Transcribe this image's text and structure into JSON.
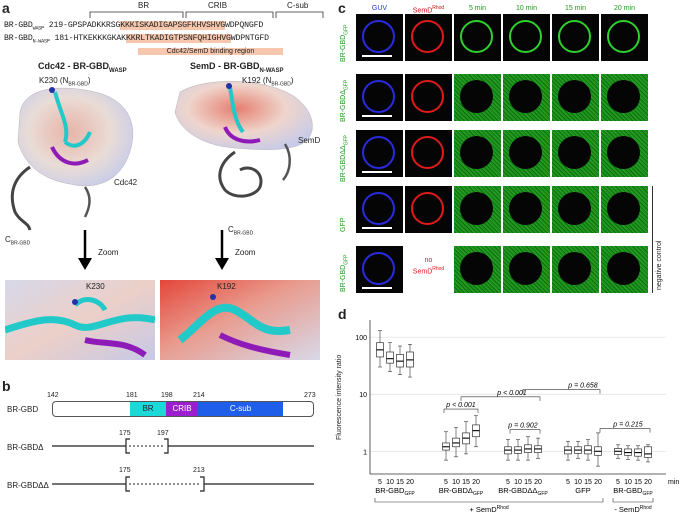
{
  "panel_a": {
    "label": "a",
    "region_headers": [
      "BR",
      "CRIB",
      "C-sub"
    ],
    "seq_wasp": {
      "name": "BR-GBD",
      "sub": "WASP",
      "pos": "219-",
      "pre": "GPSPADKKRSG",
      "hl": "KKKISKADIGAPSGFKHVSHVG",
      "post": "WDPQNGFD"
    },
    "seq_nwasp": {
      "name": "BR-GBD",
      "sub": "N-WASP",
      "pos": "181-",
      "pre": "HTKEKKKGKAK",
      "hl": "KKRLTKADIGTPSNFQHIGHVG",
      "post": "WDPNTGFD"
    },
    "binding_note": "Cdc42/SemD binding region",
    "left_title": "Cdc42 - BR-GBD",
    "left_title_sub": "WASP",
    "left_residue": "K230 (N",
    "left_residue_sub": "BR-GBD",
    "left_residue_end": ")",
    "left_partner": "Cdc42",
    "left_cterm": "C",
    "left_cterm_sub": "BR-GBD",
    "right_title": "SemD - BR-GBD",
    "right_title_sub": "N-WASP",
    "right_residue": "K192 (N",
    "right_residue_sub": "BR-GBD",
    "right_residue_end": ")",
    "right_partner": "SemD",
    "right_cterm": "C",
    "right_cterm_sub": "BR-GBD",
    "zoom_left": "Zoom",
    "zoom_right": "Zoom",
    "zoom_residue_left": "K230",
    "zoom_residue_right": "K192"
  },
  "panel_b": {
    "label": "b",
    "ticks": [
      "142",
      "181",
      "198",
      "214",
      "273"
    ],
    "construct": "BR-GBD",
    "domains": [
      "BR",
      "CRIB",
      "C-sub"
    ],
    "delta1": {
      "name": "BR-GBDΔ",
      "start": "175",
      "end": "197"
    },
    "delta2": {
      "name": "BR-GBDΔΔ",
      "start": "175",
      "end": "213"
    },
    "colors": {
      "BR": "#19d9d9",
      "CRIB": "#9b1fd0",
      "Csub": "#1f5ee8"
    }
  },
  "panel_c": {
    "label": "c",
    "col_headers": [
      "GUV",
      "SemD",
      "5 min",
      "10 min",
      "15 min",
      "20 min"
    ],
    "semd_sup": "Rhod",
    "rows": [
      "BR-GBD",
      "BR-GBDΔ",
      "BR-GBDΔΔ",
      "GFP",
      "BR-GBD"
    ],
    "row_subs": [
      "GFP",
      "GFP",
      "GFP",
      "",
      "GFP"
    ],
    "no_semd_line1": "no",
    "no_semd_line2": "SemD",
    "no_semd_sup": "Rhod",
    "negative_control": "negative control"
  },
  "panel_d": {
    "label": "d",
    "chart_data": {
      "type": "box",
      "ylabel": "Fluorescence intensity ratio",
      "yscale": "log",
      "ylim": [
        0.4,
        200
      ],
      "yticks": [
        "1",
        "10",
        "100"
      ],
      "x_tick_labels": [
        "5",
        "10",
        "15",
        "20"
      ],
      "x_unit": "min",
      "groups": [
        {
          "name": "BR-GBD",
          "sub": "GFP",
          "medians": [
            60,
            42,
            38,
            40
          ],
          "q1": [
            45,
            35,
            30,
            30
          ],
          "q3": [
            80,
            55,
            50,
            55
          ],
          "wmin": [
            30,
            25,
            22,
            20
          ],
          "wmax": [
            130,
            80,
            70,
            75
          ]
        },
        {
          "name": "BR-GBDΔ",
          "sub": "GFP",
          "medians": [
            1.2,
            1.4,
            1.7,
            2.3
          ],
          "q1": [
            1.05,
            1.2,
            1.35,
            1.8
          ],
          "q3": [
            1.4,
            1.7,
            2.1,
            2.9
          ],
          "wmin": [
            0.7,
            0.8,
            0.9,
            1.2
          ],
          "wmax": [
            2.2,
            2.6,
            3.3,
            4.2
          ]
        },
        {
          "name": "BR-GBDΔΔ",
          "sub": "GFP",
          "medians": [
            1.05,
            1.05,
            1.1,
            1.1
          ],
          "q1": [
            0.9,
            0.92,
            0.95,
            0.95
          ],
          "q3": [
            1.2,
            1.2,
            1.3,
            1.25
          ],
          "wmin": [
            0.7,
            0.7,
            0.7,
            0.75
          ],
          "wmax": [
            1.6,
            1.6,
            1.8,
            1.7
          ]
        },
        {
          "name": "GFP",
          "sub": "",
          "medians": [
            1.05,
            1.05,
            1.05,
            1.0
          ],
          "q1": [
            0.9,
            0.92,
            0.9,
            0.85
          ],
          "q3": [
            1.2,
            1.2,
            1.25,
            1.2
          ],
          "wmin": [
            0.7,
            0.75,
            0.7,
            0.55
          ],
          "wmax": [
            1.5,
            1.5,
            1.6,
            2.1
          ]
        },
        {
          "name": "BR-GBD",
          "sub": "GFP",
          "medians": [
            1.0,
            0.95,
            0.95,
            0.9
          ],
          "q1": [
            0.88,
            0.85,
            0.82,
            0.78
          ],
          "q3": [
            1.12,
            1.1,
            1.1,
            1.2
          ],
          "wmin": [
            0.75,
            0.72,
            0.7,
            0.65
          ],
          "wmax": [
            1.3,
            1.25,
            1.25,
            1.3
          ]
        }
      ],
      "p_values": [
        "p < 0.001",
        "p < 0.001",
        "p = 0.658",
        "p = 0.902",
        "p = 0.215"
      ],
      "condition_labels": [
        "+ SemD",
        "- SemD"
      ],
      "condition_sup": "Rhod"
    }
  }
}
